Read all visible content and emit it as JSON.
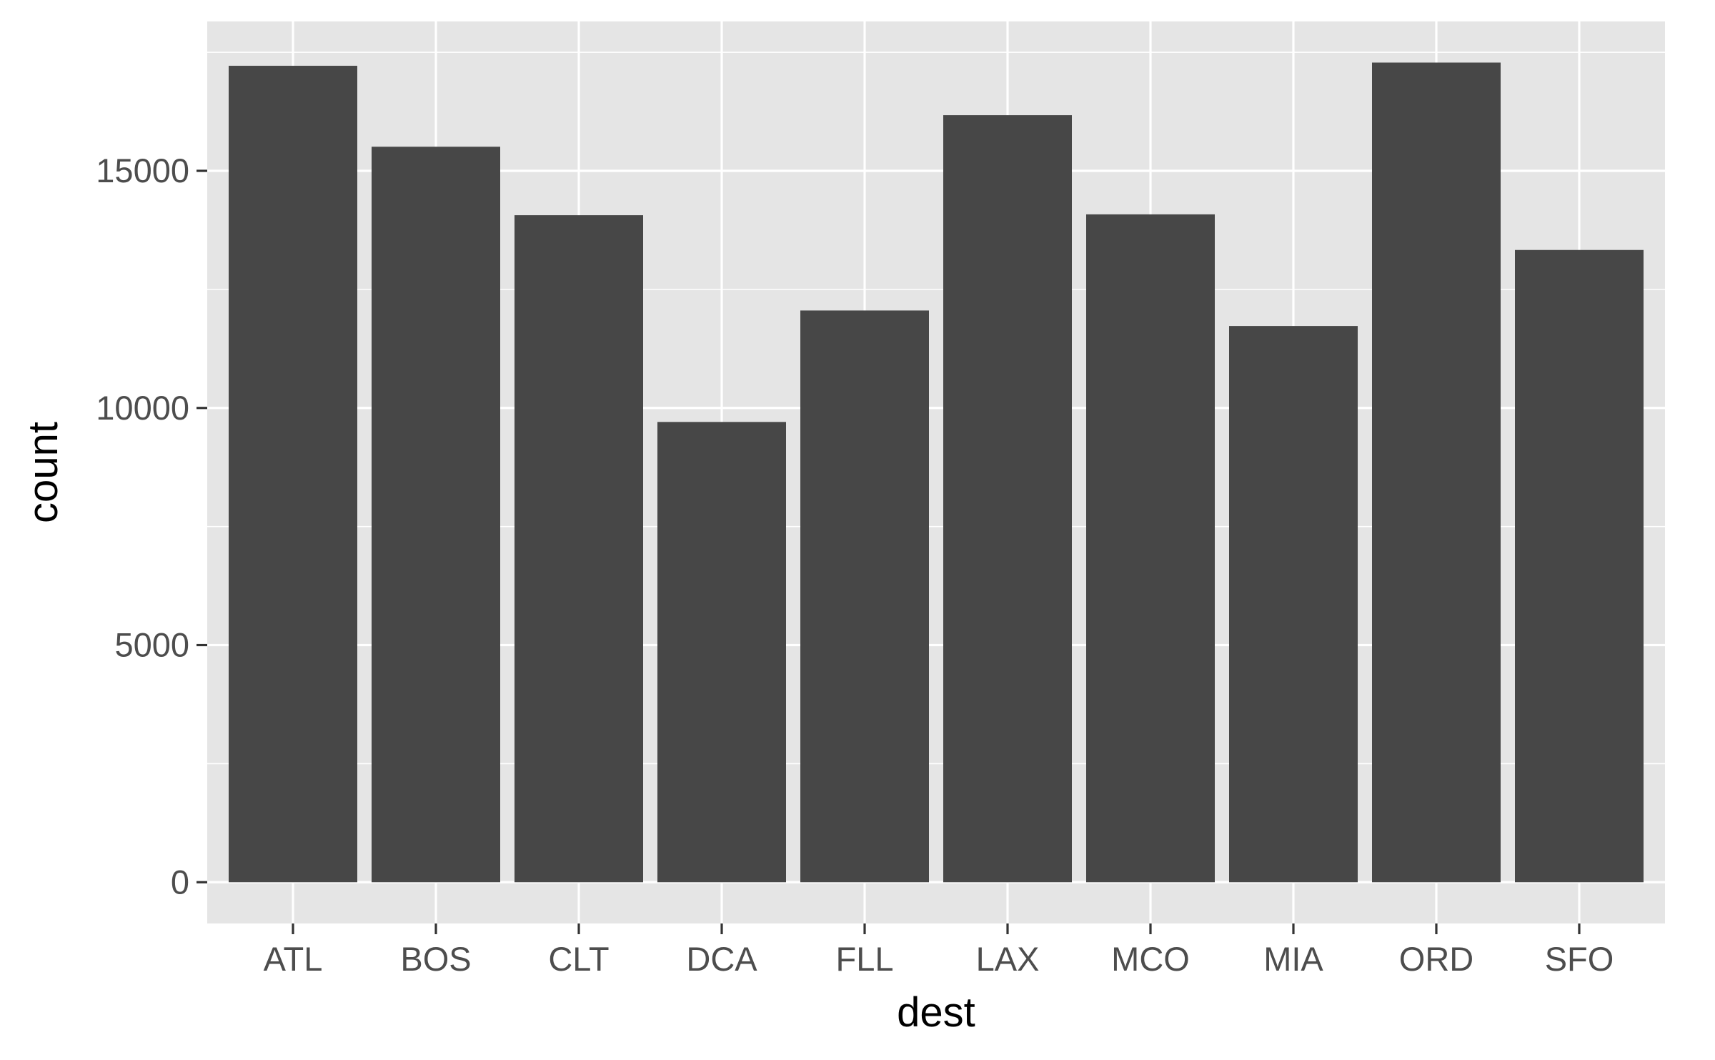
{
  "chart_data": {
    "type": "bar",
    "title": "",
    "xlabel": "dest",
    "ylabel": "count",
    "categories": [
      "ATL",
      "BOS",
      "CLT",
      "DCA",
      "FLL",
      "LAX",
      "MCO",
      "MIA",
      "ORD",
      "SFO"
    ],
    "values": [
      17215,
      15508,
      14064,
      9705,
      12055,
      16174,
      14082,
      11728,
      17283,
      13331
    ],
    "y_ticks": [
      0,
      5000,
      10000,
      15000
    ],
    "y_tick_labels": [
      "0",
      "5000",
      "10000",
      "15000"
    ],
    "ylim": [
      -870,
      18150
    ],
    "grid": true,
    "legend": "none",
    "colors": {
      "bar": "#474747",
      "panel": "#e5e5e5",
      "grid": "#ffffff",
      "tick_label": "#4d4d4d"
    }
  }
}
